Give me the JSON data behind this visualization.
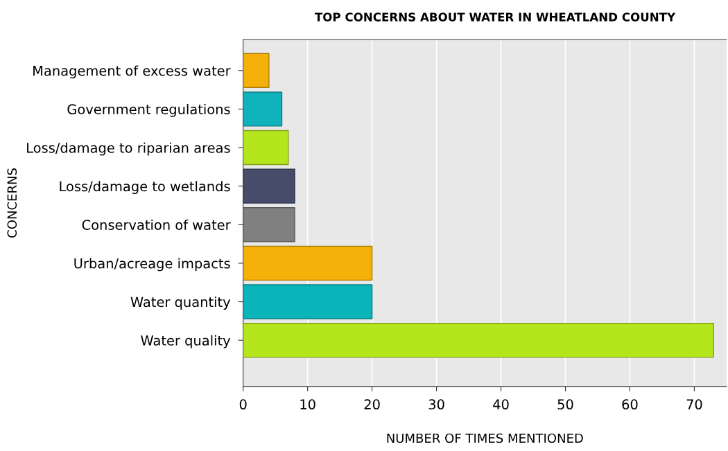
{
  "chart_data": {
    "type": "bar",
    "orientation": "horizontal",
    "title": "TOP CONCERNS ABOUT WATER IN WHEATLAND COUNTY",
    "xlabel": "NUMBER OF TIMES MENTIONED",
    "ylabel": "CONCERNS",
    "categories": [
      "Management of excess water",
      "Government regulations",
      "Loss/damage to riparian areas",
      "Loss/damage to wetlands",
      "Conservation of water",
      "Urban/acreage impacts",
      "Water quantity",
      "Water quality"
    ],
    "values": [
      4,
      6,
      7,
      8,
      8,
      20,
      20,
      73
    ],
    "colors": [
      "#f5b10a",
      "#10b3bc",
      "#b5e61d",
      "#464c6a",
      "#808080",
      "#f5b10a",
      "#0ab5ba",
      "#b5e61d"
    ],
    "xlim": [
      0,
      75
    ],
    "xticks": [
      0,
      10,
      20,
      30,
      40,
      50,
      60,
      70
    ],
    "grid": "x"
  }
}
